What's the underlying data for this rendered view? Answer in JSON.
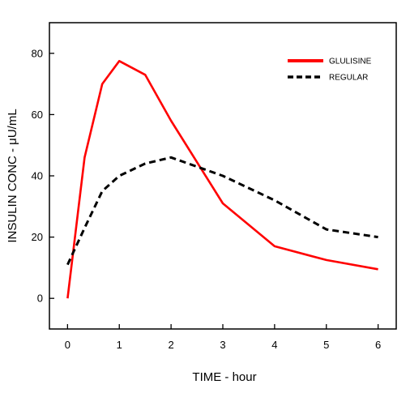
{
  "chart_data": {
    "type": "line",
    "title": "",
    "xlabel": "TIME - hour",
    "ylabel": "INSULIN CONC - μU/mL",
    "xlim": [
      -0.35,
      6.35
    ],
    "ylim": [
      -10,
      90
    ],
    "xticks": [
      0,
      1,
      2,
      3,
      4,
      5,
      6
    ],
    "yticks": [
      0,
      20,
      40,
      60,
      80
    ],
    "grid": false,
    "legend_position": "top-right",
    "series": [
      {
        "name": "GLULISINE",
        "color": "#ff0000",
        "dash": "solid",
        "x": [
          0,
          0.33,
          0.67,
          1,
          1.5,
          2,
          3,
          4,
          5,
          6
        ],
        "y": [
          0,
          46,
          70,
          77.5,
          73,
          58,
          31,
          17,
          12.5,
          9.5
        ]
      },
      {
        "name": "REGULAR",
        "color": "#000000",
        "dash": "dashed",
        "x": [
          0,
          0.33,
          0.67,
          1,
          1.5,
          2,
          3,
          4,
          5,
          6
        ],
        "y": [
          11,
          23,
          35,
          40,
          44,
          46,
          40,
          32,
          22.5,
          20
        ]
      }
    ]
  }
}
